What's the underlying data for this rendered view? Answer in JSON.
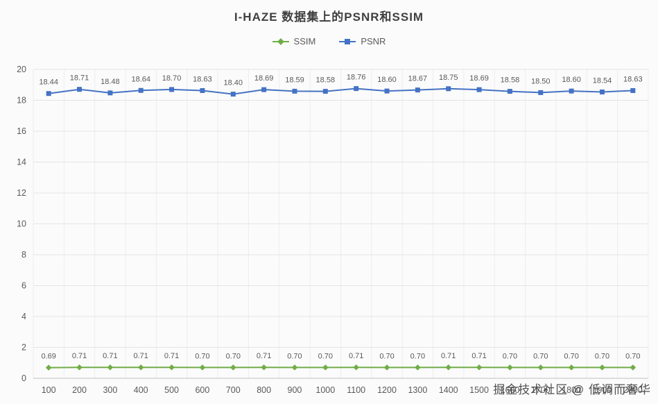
{
  "chart_data": {
    "type": "line",
    "title": "I-HAZE 数据集上的PSNR和SSIM",
    "x": [
      100,
      200,
      300,
      400,
      500,
      600,
      700,
      800,
      900,
      1000,
      1100,
      1200,
      1300,
      1400,
      1500,
      1600,
      1700,
      1800,
      1900,
      2000
    ],
    "ylim": [
      0,
      20
    ],
    "ytick_step": 2,
    "grid": true,
    "legend_position": "top",
    "series": [
      {
        "name": "SSIM",
        "color": "#70AD47",
        "marker": "diamond",
        "values": [
          0.69,
          0.71,
          0.71,
          0.71,
          0.71,
          0.7,
          0.7,
          0.71,
          0.7,
          0.7,
          0.71,
          0.7,
          0.7,
          0.71,
          0.71,
          0.7,
          0.7,
          0.7,
          0.7,
          0.7
        ]
      },
      {
        "name": "PSNR",
        "color": "#4472C4",
        "marker": "square",
        "values": [
          18.44,
          18.71,
          18.48,
          18.64,
          18.7,
          18.63,
          18.4,
          18.69,
          18.59,
          18.58,
          18.76,
          18.6,
          18.67,
          18.75,
          18.69,
          18.58,
          18.5,
          18.6,
          18.54,
          18.63
        ]
      }
    ]
  },
  "watermark": {
    "text": "掘金技术社区 @ 低调而奢华"
  }
}
